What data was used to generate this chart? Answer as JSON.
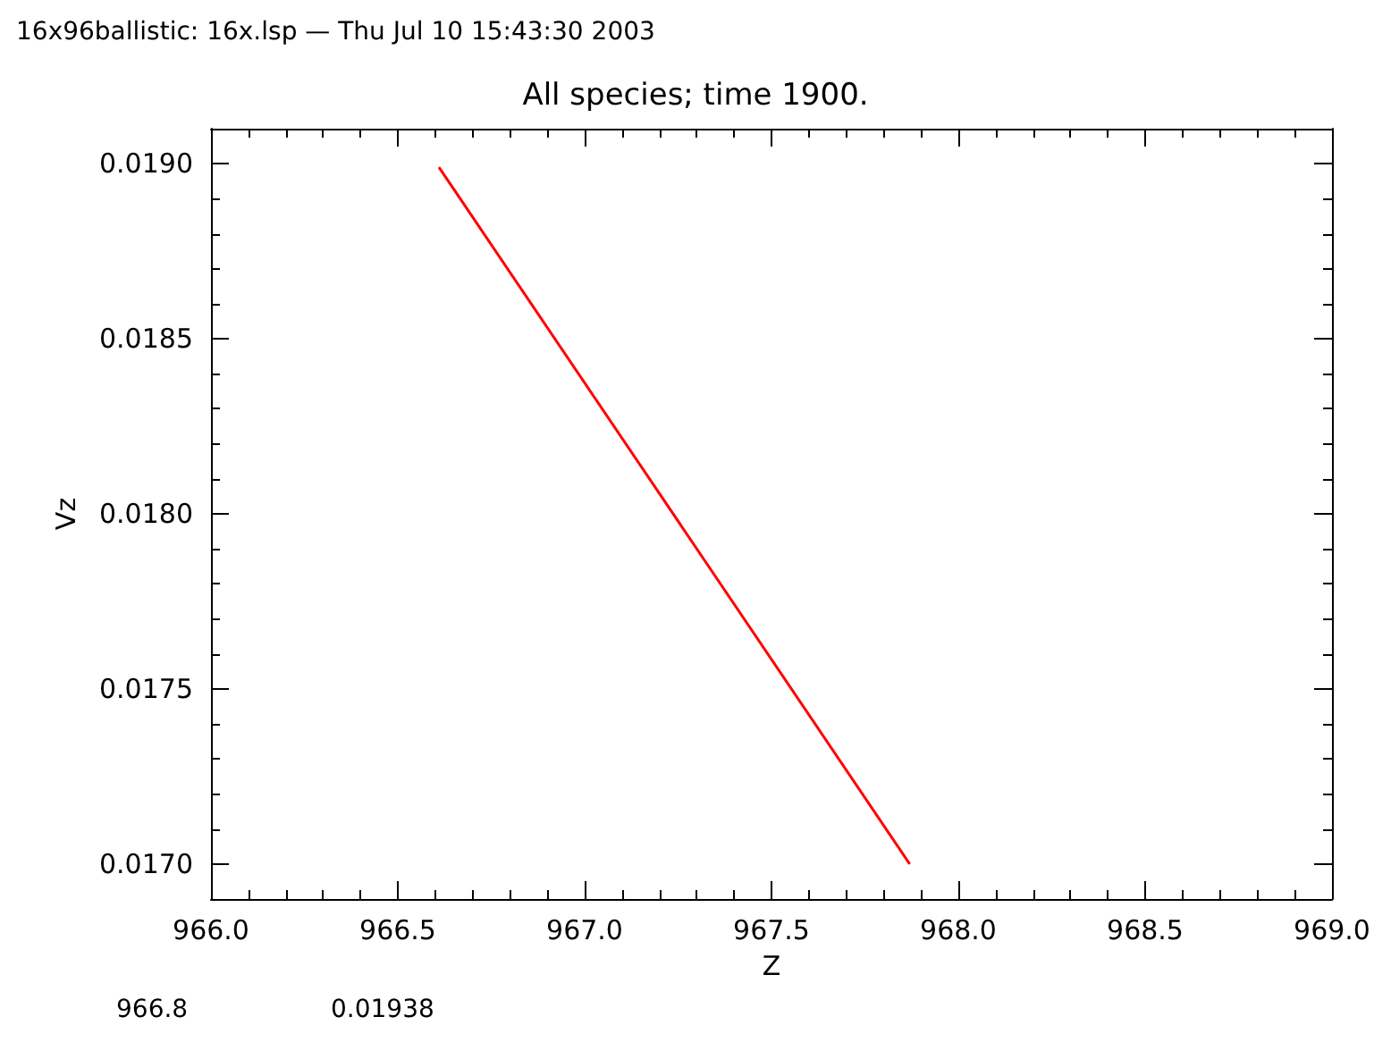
{
  "chart_data": {
    "type": "line",
    "title": "All species; time 1900.",
    "subtitle": "16x96ballistic: 16x.lsp — Thu Jul 10 15:43:30 2003",
    "xlabel": "Z",
    "ylabel": "Vz",
    "x": [
      966.61,
      967.87
    ],
    "series": [
      {
        "color": "#ff0000",
        "values": [
          0.01899,
          0.017
        ]
      }
    ],
    "xlim": [
      966.0,
      969.0
    ],
    "xticks": [
      {
        "value": 966.0,
        "label": "966.0"
      },
      {
        "value": 966.5,
        "label": "966.5"
      },
      {
        "value": 967.0,
        "label": "967.0"
      },
      {
        "value": 967.5,
        "label": "967.5"
      },
      {
        "value": 968.0,
        "label": "968.0"
      },
      {
        "value": 968.5,
        "label": "968.5"
      },
      {
        "value": 969.0,
        "label": "969.0"
      }
    ],
    "ylim": [
      0.0169,
      0.0191
    ],
    "yticks": [
      {
        "value": 0.017,
        "label": "0.0170"
      },
      {
        "value": 0.0175,
        "label": "0.0175"
      },
      {
        "value": 0.018,
        "label": "0.0180"
      },
      {
        "value": 0.0185,
        "label": "0.0185"
      },
      {
        "value": 0.019,
        "label": "0.0190"
      }
    ],
    "annotations": [
      "966.8",
      "0.01938"
    ],
    "grid": false,
    "marker": "none",
    "line_style": "solid"
  }
}
